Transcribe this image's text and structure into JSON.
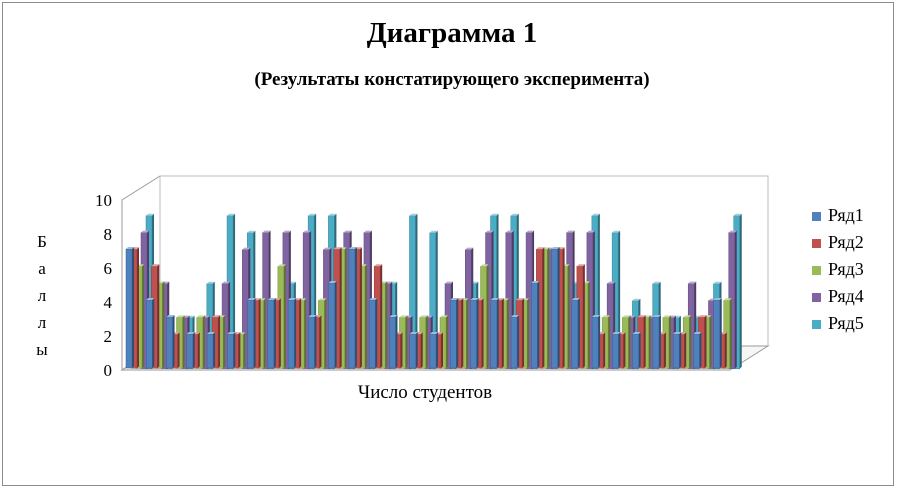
{
  "chart_data": {
    "type": "bar",
    "title": "Диаграмма 1",
    "subtitle": "(Результаты констатирующего эксперимента)",
    "xlabel": "Число студентов",
    "ylabel": [
      "Б",
      "а",
      "л",
      "л",
      "ы"
    ],
    "yticks": [
      "0",
      "2",
      "4",
      "6",
      "8",
      "10"
    ],
    "ylim": [
      0,
      10
    ],
    "grid": false,
    "legend_position": "right",
    "projection": "3d",
    "series": [
      {
        "name": "Ряд1",
        "color": "#4f81bd",
        "values": [
          7,
          4,
          3,
          2,
          2,
          2,
          4,
          4,
          4,
          3,
          5,
          7,
          4,
          3,
          2,
          2,
          4,
          4,
          4,
          3,
          5,
          7,
          4,
          3,
          2,
          2,
          3,
          2,
          2,
          4
        ]
      },
      {
        "name": "Ряд2",
        "color": "#c0504d",
        "values": [
          7,
          6,
          2,
          2,
          3,
          2,
          4,
          4,
          4,
          3,
          7,
          7,
          6,
          2,
          2,
          2,
          4,
          4,
          4,
          4,
          7,
          7,
          6,
          2,
          2,
          3,
          2,
          2,
          3,
          2
        ]
      },
      {
        "name": "Ряд3",
        "color": "#9bbb59",
        "values": [
          6,
          5,
          3,
          3,
          3,
          2,
          4,
          6,
          4,
          4,
          7,
          6,
          5,
          3,
          3,
          3,
          4,
          6,
          4,
          4,
          7,
          6,
          5,
          3,
          3,
          3,
          3,
          3,
          3,
          4
        ]
      },
      {
        "name": "Ряд4",
        "color": "#8064a2",
        "values": [
          8,
          5,
          3,
          3,
          5,
          7,
          8,
          8,
          8,
          7,
          8,
          8,
          5,
          3,
          3,
          5,
          7,
          8,
          8,
          8,
          7,
          8,
          8,
          5,
          3,
          3,
          3,
          5,
          4,
          8
        ]
      },
      {
        "name": "Ряд5",
        "color": "#4bacc6",
        "values": [
          9,
          3,
          3,
          5,
          9,
          8,
          4,
          5,
          9,
          9,
          3,
          3,
          5,
          9,
          8,
          4,
          5,
          9,
          9,
          3,
          3,
          5,
          9,
          8,
          4,
          5,
          3,
          3,
          5,
          9
        ]
      }
    ]
  }
}
